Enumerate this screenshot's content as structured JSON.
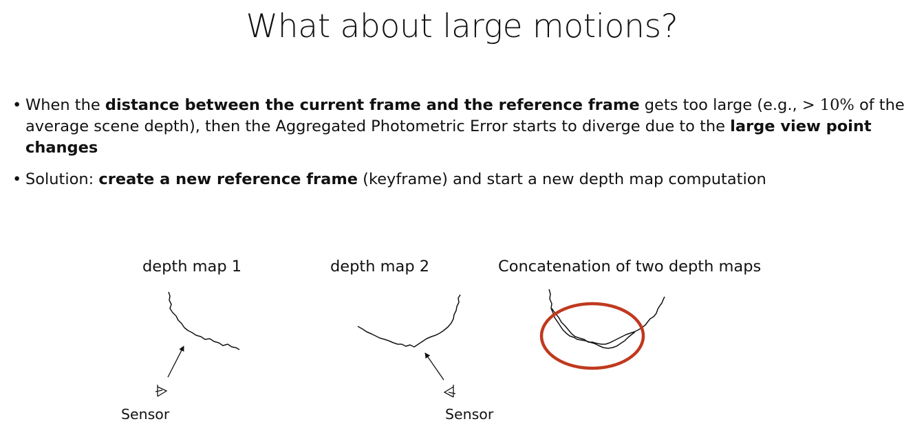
{
  "slide": {
    "title": "What about large motions?"
  },
  "bullets": [
    {
      "marker": "•",
      "parts": [
        {
          "text": "When the ",
          "bold": false
        },
        {
          "text": "distance between the current frame and the reference frame",
          "bold": true
        },
        {
          "text": " gets too large (e.g., ",
          "bold": false
        },
        {
          "text": "> 10%",
          "math": true
        },
        {
          "text": " of the average scene depth), then the Aggregated Photometric Error starts to diverge due to the ",
          "bold": false
        },
        {
          "text": "large view point changes",
          "bold": true
        }
      ]
    },
    {
      "marker": "•",
      "parts": [
        {
          "text": "Solution: ",
          "bold": false
        },
        {
          "text": "create a new reference frame",
          "bold": true
        },
        {
          "text": " (keyframe) and start a new depth map computation",
          "bold": false
        }
      ]
    }
  ],
  "figure": {
    "label_depth_map_1": "depth map 1",
    "label_depth_map_2": "depth map 2",
    "label_concatenation": "Concatenation of two depth maps",
    "sensor_label_1": "Sensor",
    "sensor_label_2": "Sensor",
    "highlight_color": "#c0391f",
    "stroke_color": "#111111"
  }
}
